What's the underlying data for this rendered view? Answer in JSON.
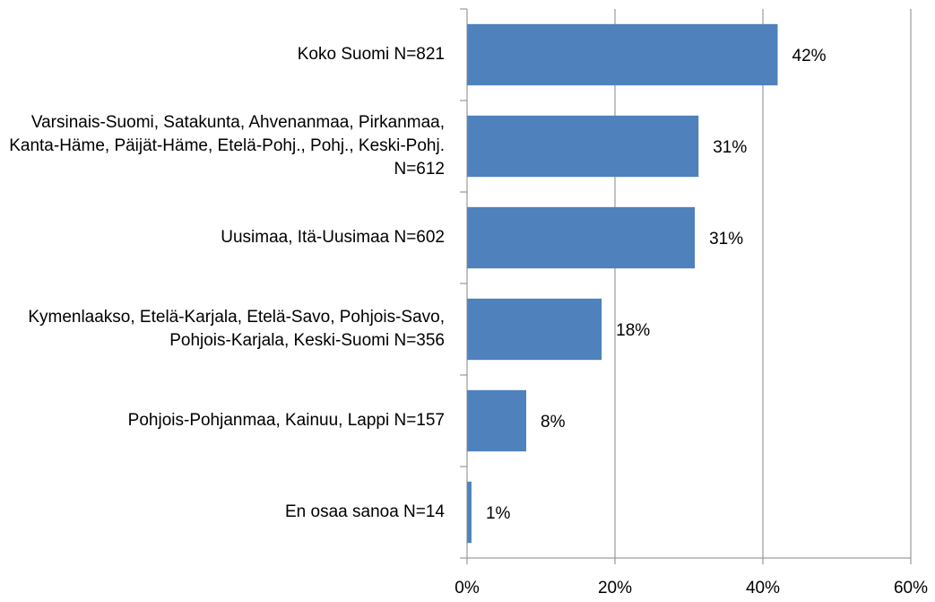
{
  "chart_data": {
    "type": "hbar",
    "categories": [
      "Koko Suomi N=821",
      "Varsinais-Suomi, Satakunta, Ahvenanmaa, Pirkanmaa, Kanta-Häme, Päijät-Häme, Etelä-Pohj., Pohj., Keski-Pohj. N=612",
      "Uusimaa, Itä-Uusimaa N=602",
      "Kymenlaakso, Etelä-Karjala, Etelä-Savo, Pohjois-Savo, Pohjois-Karjala, Keski-Suomi N=356",
      "Pohjois-Pohjanmaa, Kainuu, Lappi N=157",
      "En osaa sanoa N=14"
    ],
    "values": [
      42,
      31.3,
      30.8,
      18.2,
      8,
      0.6
    ],
    "value_labels": [
      "42%",
      "31%",
      "31%",
      "18%",
      "8%",
      "1%"
    ],
    "color": "#4f81bd",
    "xlim": [
      0,
      60
    ],
    "xticks": [
      {
        "value": 0,
        "label": "0%"
      },
      {
        "value": 20,
        "label": "20%"
      },
      {
        "value": 40,
        "label": "40%"
      },
      {
        "value": 60,
        "label": "60%"
      }
    ],
    "grid": true
  }
}
